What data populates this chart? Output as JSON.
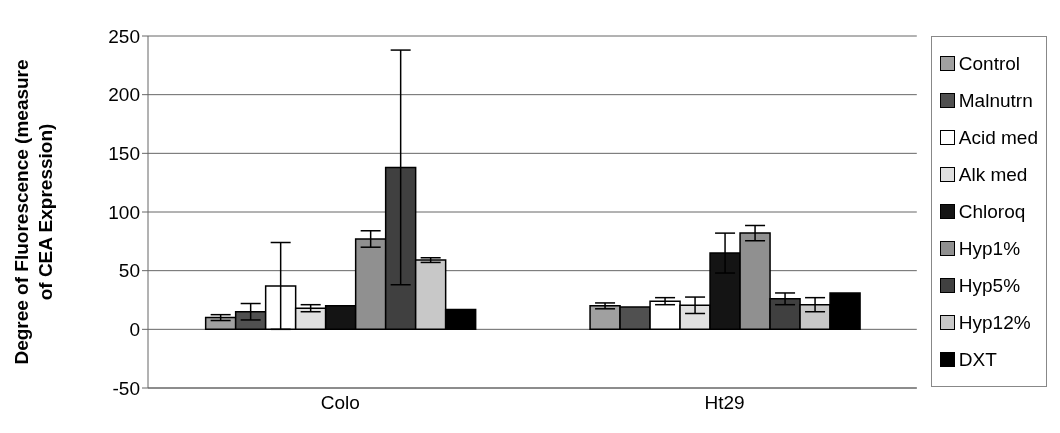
{
  "chart_data": {
    "type": "bar",
    "ylabel": "Degree of Fluorescence (measure of CEA Expression)",
    "categories": [
      "Colo",
      "Ht29"
    ],
    "series": [
      {
        "name": "Control",
        "color": "#a0a0a0",
        "values": [
          10,
          20
        ],
        "errors": [
          2.5,
          2.5
        ]
      },
      {
        "name": "Malnutrn",
        "color": "#505050",
        "values": [
          15,
          19
        ],
        "errors": [
          7,
          null
        ]
      },
      {
        "name": "Acid med",
        "color": "#ffffff",
        "values": [
          37,
          24
        ],
        "errors": [
          37,
          3
        ]
      },
      {
        "name": "Alk med",
        "color": "#e0e0e0",
        "values": [
          18,
          20.5
        ],
        "errors": [
          3,
          7
        ]
      },
      {
        "name": "Chloroq",
        "color": "#141414",
        "values": [
          20,
          65
        ],
        "errors": [
          null,
          17
        ]
      },
      {
        "name": "Hyp1%",
        "color": "#909090",
        "values": [
          77,
          82
        ],
        "errors": [
          7,
          6.5
        ]
      },
      {
        "name": "Hyp5%",
        "color": "#404040",
        "values": [
          138,
          26
        ],
        "errors": [
          100,
          5
        ]
      },
      {
        "name": "Hyp12%",
        "color": "#c8c8c8",
        "values": [
          59,
          21
        ],
        "errors": [
          2,
          6
        ]
      },
      {
        "name": "DXT",
        "color": "#000000",
        "values": [
          17,
          31
        ],
        "errors": [
          null,
          null
        ]
      }
    ],
    "ylim": [
      -50,
      250
    ],
    "yticks": [
      -50,
      0,
      50,
      100,
      150,
      200,
      250
    ],
    "grid": "y",
    "legend": "right"
  }
}
